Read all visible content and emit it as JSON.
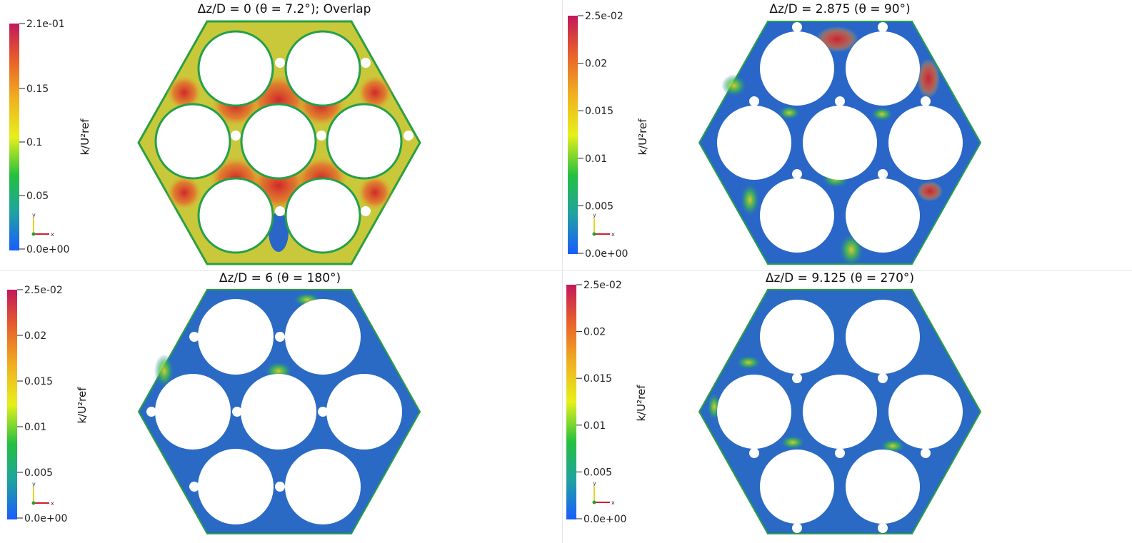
{
  "panels": [
    {
      "id": "dz0",
      "title": "Δz/D = 0 (θ = 7.2°); Overlap",
      "colorbar_title": "k/U²ref",
      "colorbar_labels": [
        "2.1e-01",
        "0.15",
        "0.1",
        "0.05",
        "0.0e+00"
      ],
      "field_level": "high"
    },
    {
      "id": "dz2875",
      "title": "Δz/D = 2.875 (θ = 90°)",
      "colorbar_title": "k/U²ref",
      "colorbar_labels": [
        "2.5e-02",
        "0.02",
        "0.015",
        "0.01",
        "0.005",
        "0.0e+00"
      ],
      "field_level": "low"
    },
    {
      "id": "dz6",
      "title": "Δz/D = 6 (θ = 180°)",
      "colorbar_title": "k/U²ref",
      "colorbar_labels": [
        "2.5e-02",
        "0.02",
        "0.015",
        "0.01",
        "0.005",
        "0.0e+00"
      ],
      "field_level": "low"
    },
    {
      "id": "dz9125",
      "title": "Δz/D = 9.125 (θ = 270°)",
      "colorbar_title": "k/U²ref",
      "colorbar_labels": [
        "2.5e-02",
        "0.02",
        "0.015",
        "0.01",
        "0.005",
        "0.0e+00"
      ],
      "field_level": "low"
    }
  ],
  "axes_labels": {
    "x": "x",
    "y": "y"
  },
  "colors": {
    "colormap": [
      "#1a5cff",
      "#1fa3a0",
      "#24c040",
      "#e6f01a",
      "#f0b020",
      "#e8602a",
      "#c2185b"
    ],
    "hex_fill_high": "#c8c832",
    "hex_fill_low": "#2a66c8",
    "hot_spot": "#d62a2a"
  },
  "icons": [
    "axis-triad-icon"
  ]
}
